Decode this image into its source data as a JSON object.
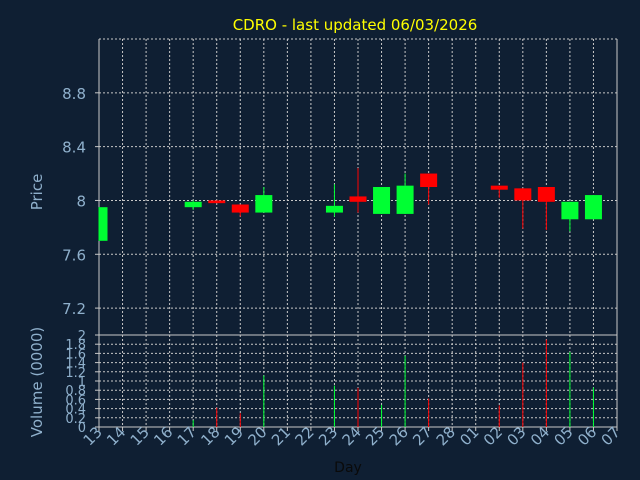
{
  "title": "CDRO - last updated 06/03/2026",
  "colors": {
    "background": "#0f1f33",
    "title": "#ffff00",
    "axis_text": "#8fb0cc",
    "grid": "#c8c8c8",
    "up": "#00ff33",
    "down": "#ff0000"
  },
  "chart_data": [
    {
      "type": "candlestick",
      "ylabel": "Price",
      "ylim": [
        7.0,
        9.2
      ],
      "yticks": [
        "7.2",
        "7.6",
        "8",
        "8.4",
        "8.8"
      ],
      "ytick_values": [
        7.2,
        7.6,
        8.0,
        8.4,
        8.8
      ],
      "grid": true,
      "categories": [
        "13",
        "14",
        "15",
        "16",
        "17",
        "18",
        "19",
        "20",
        "21",
        "22",
        "23",
        "24",
        "25",
        "26",
        "27",
        "28",
        "01",
        "02",
        "03",
        "04",
        "05",
        "06",
        "07"
      ],
      "candles": [
        {
          "x": "13",
          "open": 7.7,
          "close": 7.95,
          "high": 7.95,
          "low": 7.7
        },
        {
          "x": "17",
          "open": 7.95,
          "close": 7.99,
          "high": 8.0,
          "low": 7.93
        },
        {
          "x": "18",
          "open": 8.0,
          "close": 7.98,
          "high": 8.0,
          "low": 7.98
        },
        {
          "x": "19",
          "open": 7.97,
          "close": 7.91,
          "high": 7.97,
          "low": 7.88
        },
        {
          "x": "20",
          "open": 7.91,
          "close": 8.04,
          "high": 8.1,
          "low": 7.91
        },
        {
          "x": "23",
          "open": 7.91,
          "close": 7.96,
          "high": 8.12,
          "low": 7.88
        },
        {
          "x": "24",
          "open": 8.03,
          "close": 7.99,
          "high": 8.24,
          "low": 7.91
        },
        {
          "x": "25",
          "open": 7.9,
          "close": 8.1,
          "high": 8.1,
          "low": 7.9
        },
        {
          "x": "26",
          "open": 7.9,
          "close": 8.11,
          "high": 8.2,
          "low": 7.9
        },
        {
          "x": "27",
          "open": 8.2,
          "close": 8.1,
          "high": 8.2,
          "low": 7.97
        },
        {
          "x": "02",
          "open": 8.11,
          "close": 8.08,
          "high": 8.11,
          "low": 8.02
        },
        {
          "x": "03",
          "open": 8.09,
          "close": 8.0,
          "high": 8.09,
          "low": 7.79
        },
        {
          "x": "04",
          "open": 8.1,
          "close": 7.99,
          "high": 8.1,
          "low": 7.78
        },
        {
          "x": "05",
          "open": 7.86,
          "close": 7.99,
          "high": 7.99,
          "low": 7.77
        },
        {
          "x": "06",
          "open": 7.86,
          "close": 8.04,
          "high": 8.04,
          "low": 7.86
        }
      ]
    },
    {
      "type": "bar",
      "ylabel": "Volume (0000)",
      "xlabel": "Day",
      "ylim": [
        0,
        2
      ],
      "yticks": [
        "0",
        "0.2",
        "0.4",
        "0.6",
        "0.8",
        "1",
        "1.2",
        "1.4",
        "1.6",
        "1.8",
        "2"
      ],
      "ytick_values": [
        0,
        0.2,
        0.4,
        0.6,
        0.8,
        1.0,
        1.2,
        1.4,
        1.6,
        1.8,
        2.0
      ],
      "grid": true,
      "bars": [
        {
          "x": "17",
          "value": 0.15,
          "direction": "up"
        },
        {
          "x": "18",
          "value": 0.42,
          "direction": "down"
        },
        {
          "x": "19",
          "value": 0.3,
          "direction": "down"
        },
        {
          "x": "20",
          "value": 1.12,
          "direction": "up"
        },
        {
          "x": "23",
          "value": 0.9,
          "direction": "up"
        },
        {
          "x": "24",
          "value": 0.85,
          "direction": "down"
        },
        {
          "x": "25",
          "value": 0.48,
          "direction": "up"
        },
        {
          "x": "26",
          "value": 1.55,
          "direction": "up"
        },
        {
          "x": "27",
          "value": 0.62,
          "direction": "down"
        },
        {
          "x": "02",
          "value": 0.47,
          "direction": "down"
        },
        {
          "x": "03",
          "value": 1.4,
          "direction": "down"
        },
        {
          "x": "04",
          "value": 1.9,
          "direction": "down"
        },
        {
          "x": "05",
          "value": 1.63,
          "direction": "up"
        },
        {
          "x": "06",
          "value": 0.86,
          "direction": "up"
        }
      ]
    }
  ]
}
